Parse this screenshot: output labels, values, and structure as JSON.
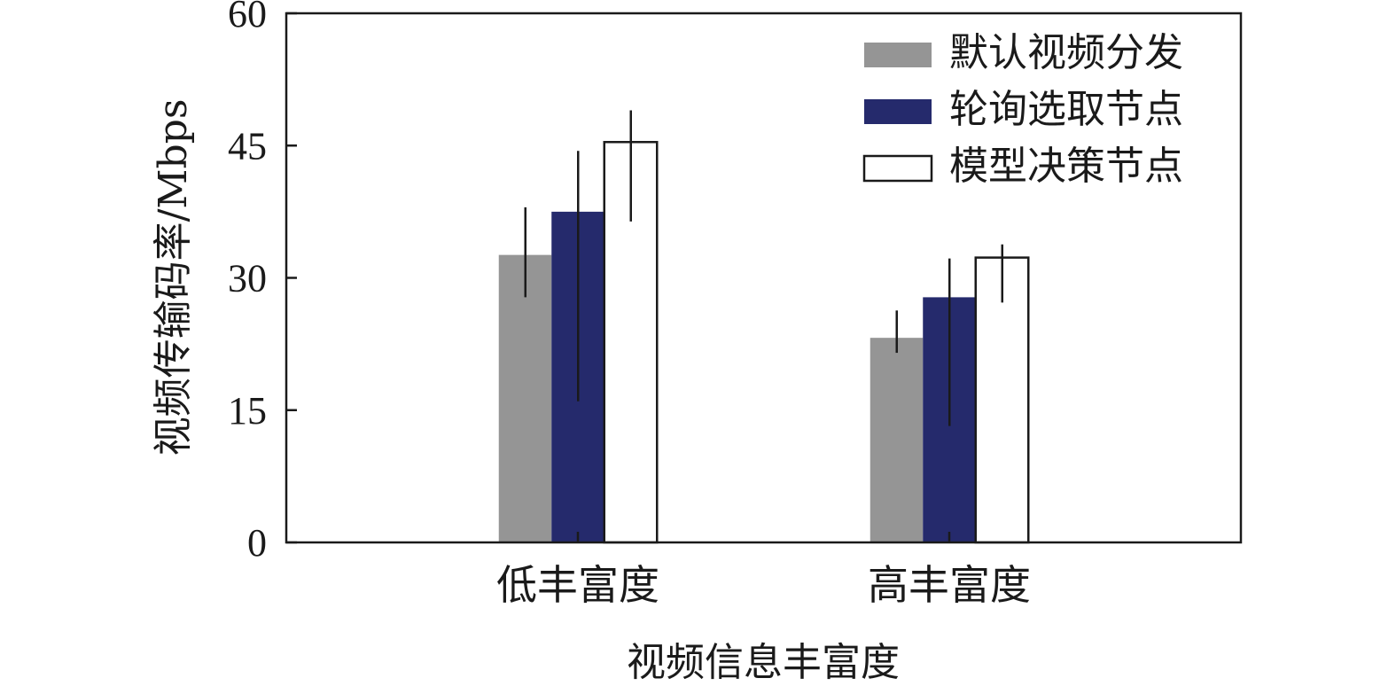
{
  "chart_data": {
    "type": "bar",
    "title": "",
    "xlabel": "视频信息丰富度",
    "ylabel": "视频传输码率/Mbps",
    "ylim": [
      0,
      60
    ],
    "yticks": [
      "0",
      "15",
      "30",
      "45",
      "60"
    ],
    "categories": [
      "低丰富度",
      "高丰富度"
    ],
    "legend_position": "top-right",
    "grid": false,
    "series": [
      {
        "name": "默认视频分发",
        "values": [
          32.6,
          23.2
        ],
        "error_low": [
          27.8,
          21.5
        ],
        "error_high": [
          38.0,
          26.3
        ],
        "color": "#959595"
      },
      {
        "name": "轮询选取节点",
        "values": [
          37.5,
          27.8
        ],
        "error_low": [
          16.0,
          13.2
        ],
        "error_high": [
          44.4,
          32.2
        ],
        "color": "#252a6c"
      },
      {
        "name": "模型决策节点",
        "values": [
          45.4,
          32.3
        ],
        "error_low": [
          36.4,
          27.2
        ],
        "error_high": [
          49.0,
          33.8
        ],
        "color": "#ffffff"
      }
    ]
  }
}
